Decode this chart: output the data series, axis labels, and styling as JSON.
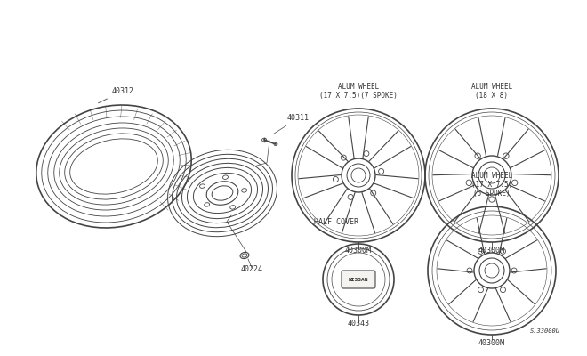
{
  "bg_color": "#ffffff",
  "line_color": "#444444",
  "text_color": "#333333",
  "labels": {
    "tire": "40312",
    "valve": "40311",
    "lug": "40224",
    "wheel1_title1": "ALUM WHEEL",
    "wheel1_title2": "(17 X 7.5)(7 SPOKE)",
    "wheel1_part": "40300M",
    "wheel2_title1": "ALUM WHEEL",
    "wheel2_title2": "(18 X 8)",
    "wheel2_part": "40300M",
    "half_cover_title": "HALF COVER",
    "half_cover_part": "40343",
    "wheel3_title1": "ALUM WHEEL",
    "wheel3_title2": "(17 X 7.5)",
    "wheel3_title3": "(5 SPOKE)",
    "wheel3_part": "40300M",
    "diagram_id": "S:33000U"
  }
}
